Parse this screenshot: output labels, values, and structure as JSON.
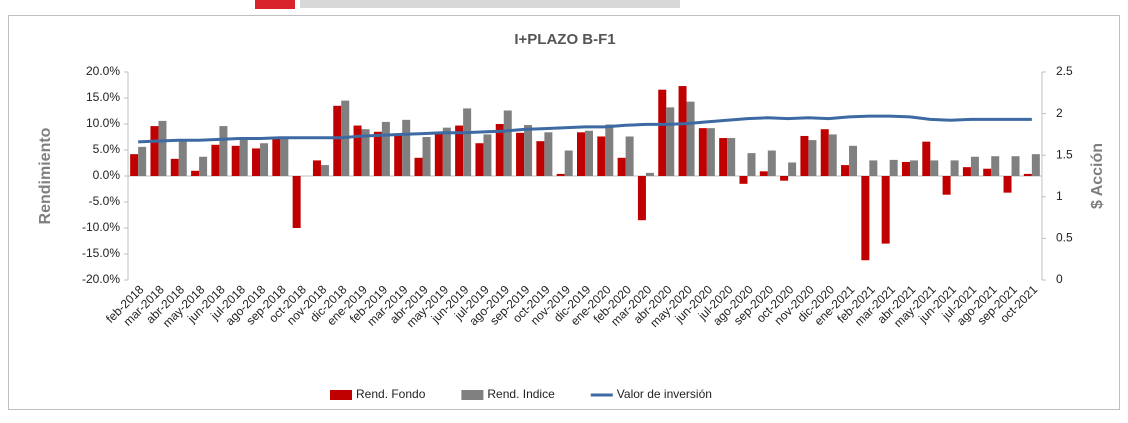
{
  "chart_data": {
    "type": "bar",
    "title": "I+PLAZO B-F1",
    "ylabel": "Rendimiento",
    "y2label": "$ Acción",
    "categories": [
      "feb-2018",
      "mar-2018",
      "abr-2018",
      "may-2018",
      "jun-2018",
      "jul-2018",
      "ago-2018",
      "sep-2018",
      "oct-2018",
      "nov-2018",
      "dic-2018",
      "ene-2019",
      "feb-2019",
      "mar-2019",
      "abr-2019",
      "may-2019",
      "jun-2019",
      "jul-2019",
      "ago-2019",
      "sep-2019",
      "oct-2019",
      "nov-2019",
      "dic-2019",
      "ene-2020",
      "feb-2020",
      "mar-2020",
      "abr-2020",
      "may-2020",
      "jun-2020",
      "jul-2020",
      "ago-2020",
      "sep-2020",
      "oct-2020",
      "nov-2020",
      "dic-2020",
      "ene-2021",
      "feb-2021",
      "mar-2021",
      "abr-2021",
      "may-2021",
      "jun-2021",
      "jul-2021",
      "ago-2021",
      "sep-2021",
      "oct-2021"
    ],
    "series": [
      {
        "name": "Rend. Fondo",
        "color": "#c00000",
        "values": [
          4.2,
          9.6,
          3.3,
          1.0,
          6.0,
          5.8,
          5.3,
          7.3,
          -10.0,
          3.0,
          13.5,
          9.7,
          8.5,
          8.2,
          3.5,
          8.2,
          9.7,
          6.3,
          10.0,
          8.3,
          6.7,
          0.4,
          8.4,
          7.6,
          3.5,
          -8.5,
          16.6,
          17.3,
          9.2,
          7.3,
          -1.5,
          0.9,
          -0.9,
          7.7,
          9.0,
          2.1,
          -16.2,
          -13.0,
          2.7,
          6.6,
          -3.6,
          1.7,
          1.4,
          -3.2,
          0.4
        ]
      },
      {
        "name": "Rend. Indice",
        "color": "#808080",
        "values": [
          5.6,
          10.6,
          6.8,
          3.7,
          9.6,
          7.0,
          6.3,
          7.3,
          0,
          2.1,
          14.5,
          9.0,
          10.4,
          10.8,
          7.5,
          9.3,
          13.0,
          8.0,
          12.6,
          9.8,
          8.4,
          4.9,
          8.7,
          9.9,
          7.6,
          0.6,
          13.2,
          14.3,
          9.2,
          7.3,
          4.4,
          4.9,
          2.6,
          6.9,
          8.0,
          5.8,
          3.0,
          3.1,
          3.0,
          3.0,
          3.0,
          3.7,
          3.8,
          3.8,
          4.2
        ]
      },
      {
        "name": "Valor de inversión",
        "color": "#3d6aa3",
        "axis": "y2",
        "type": "line",
        "values": [
          1.66,
          1.67,
          1.68,
          1.68,
          1.69,
          1.7,
          1.7,
          1.71,
          1.71,
          1.71,
          1.71,
          1.73,
          1.74,
          1.75,
          1.76,
          1.77,
          1.77,
          1.78,
          1.79,
          1.81,
          1.82,
          1.83,
          1.84,
          1.84,
          1.86,
          1.87,
          1.87,
          1.88,
          1.9,
          1.92,
          1.94,
          1.95,
          1.94,
          1.95,
          1.94,
          1.96,
          1.97,
          1.97,
          1.96,
          1.93,
          1.92,
          1.93,
          1.93,
          1.93,
          1.93
        ]
      }
    ],
    "ylim": [
      -20,
      20
    ],
    "yticks": [
      {
        "value": -20,
        "label": "-20.0%"
      },
      {
        "value": -15,
        "label": "-15.0%"
      },
      {
        "value": -10,
        "label": "-10.0%"
      },
      {
        "value": -5,
        "label": "-5.0%"
      },
      {
        "value": 0,
        "label": "0.0%"
      },
      {
        "value": 5,
        "label": "5.0%"
      },
      {
        "value": 10,
        "label": "10.0%"
      },
      {
        "value": 15,
        "label": "15.0%"
      },
      {
        "value": 20,
        "label": "20.0%"
      }
    ],
    "y2lim": [
      0,
      2.5
    ],
    "y2ticks": [
      0,
      0.5,
      1,
      1.5,
      2,
      2.5
    ],
    "legend": "bottom",
    "grid": false
  }
}
